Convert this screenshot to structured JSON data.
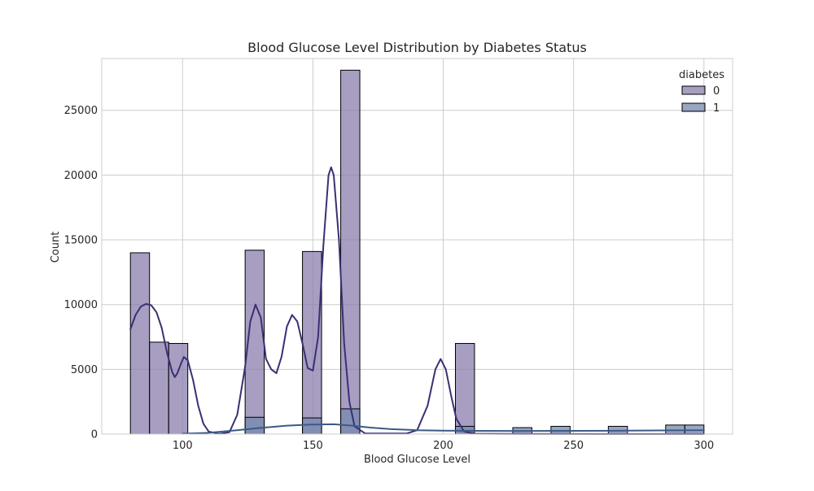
{
  "chart_data": {
    "type": "bar",
    "title": "Blood Glucose Level Distribution by Diabetes Status",
    "xlabel": "Blood Glucose Level",
    "ylabel": "Count",
    "xlim": [
      69,
      311
    ],
    "ylim": [
      0,
      29000
    ],
    "x_ticks": [
      100,
      150,
      200,
      250,
      300
    ],
    "y_ticks": [
      0,
      5000,
      10000,
      15000,
      20000,
      25000
    ],
    "grid": true,
    "legend": {
      "title": "diabetes",
      "placement": "top-right",
      "entries": [
        "0",
        "1"
      ]
    },
    "bin_edges": [
      80,
      87.33,
      94.67,
      102,
      109.33,
      116.67,
      124,
      131.33,
      138.67,
      146,
      153.33,
      160.67,
      168,
      175.33,
      182.67,
      190,
      197.33,
      204.67,
      212,
      219.33,
      226.67,
      234,
      241.33,
      248.67,
      256,
      263.33,
      270.67,
      278,
      285.33,
      292.67,
      300
    ],
    "series": [
      {
        "name": "0",
        "color": "#8a7ead",
        "kde_color": "#3b2f75",
        "values": [
          14000,
          7100,
          7000,
          0,
          0,
          0,
          14200,
          0,
          0,
          14100,
          0,
          28100,
          0,
          0,
          0,
          0,
          0,
          7000,
          0,
          0,
          0,
          0,
          0,
          0,
          0,
          0,
          0,
          0,
          0,
          0
        ],
        "kde": [
          [
            80,
            8100
          ],
          [
            82,
            9200
          ],
          [
            84,
            9850
          ],
          [
            86,
            10050
          ],
          [
            88,
            9950
          ],
          [
            90,
            9400
          ],
          [
            92,
            8200
          ],
          [
            94,
            6300
          ],
          [
            96,
            4800
          ],
          [
            97,
            4400
          ],
          [
            98,
            4700
          ],
          [
            99.5,
            5500
          ],
          [
            100.5,
            5950
          ],
          [
            102,
            5700
          ],
          [
            104,
            4200
          ],
          [
            106,
            2200
          ],
          [
            108,
            800
          ],
          [
            110,
            200
          ],
          [
            114,
            20
          ],
          [
            118,
            150
          ],
          [
            121,
            1500
          ],
          [
            124,
            5200
          ],
          [
            126,
            8700
          ],
          [
            128,
            10000
          ],
          [
            130,
            9000
          ],
          [
            132,
            5800
          ],
          [
            134,
            5000
          ],
          [
            136,
            4700
          ],
          [
            138,
            6000
          ],
          [
            140,
            8300
          ],
          [
            142,
            9200
          ],
          [
            144,
            8700
          ],
          [
            146,
            7000
          ],
          [
            148,
            5100
          ],
          [
            150,
            4900
          ],
          [
            152,
            7500
          ],
          [
            154,
            14500
          ],
          [
            156,
            20000
          ],
          [
            157,
            20600
          ],
          [
            158,
            20000
          ],
          [
            160,
            15000
          ],
          [
            162,
            7000
          ],
          [
            164,
            2500
          ],
          [
            166,
            600
          ],
          [
            170,
            50
          ],
          [
            186,
            50
          ],
          [
            190,
            300
          ],
          [
            194,
            2200
          ],
          [
            197,
            5000
          ],
          [
            199,
            5800
          ],
          [
            201,
            5000
          ],
          [
            203,
            3000
          ],
          [
            205,
            1200
          ],
          [
            208,
            200
          ],
          [
            212,
            30
          ],
          [
            230,
            10
          ],
          [
            300,
            5
          ]
        ]
      },
      {
        "name": "1",
        "color": "#7588ad",
        "kde_color": "#3b5a87",
        "values": [
          0,
          0,
          0,
          0,
          0,
          0,
          1300,
          0,
          0,
          1250,
          0,
          1950,
          0,
          0,
          0,
          0,
          0,
          600,
          0,
          0,
          500,
          0,
          600,
          0,
          0,
          600,
          0,
          0,
          700,
          700
        ],
        "kde": [
          [
            100,
            30
          ],
          [
            110,
            100
          ],
          [
            120,
            280
          ],
          [
            130,
            480
          ],
          [
            140,
            650
          ],
          [
            150,
            740
          ],
          [
            158,
            760
          ],
          [
            165,
            650
          ],
          [
            172,
            500
          ],
          [
            180,
            380
          ],
          [
            190,
            300
          ],
          [
            200,
            270
          ],
          [
            210,
            250
          ],
          [
            230,
            245
          ],
          [
            250,
            248
          ],
          [
            270,
            262
          ],
          [
            290,
            290
          ],
          [
            300,
            300
          ]
        ]
      }
    ]
  }
}
